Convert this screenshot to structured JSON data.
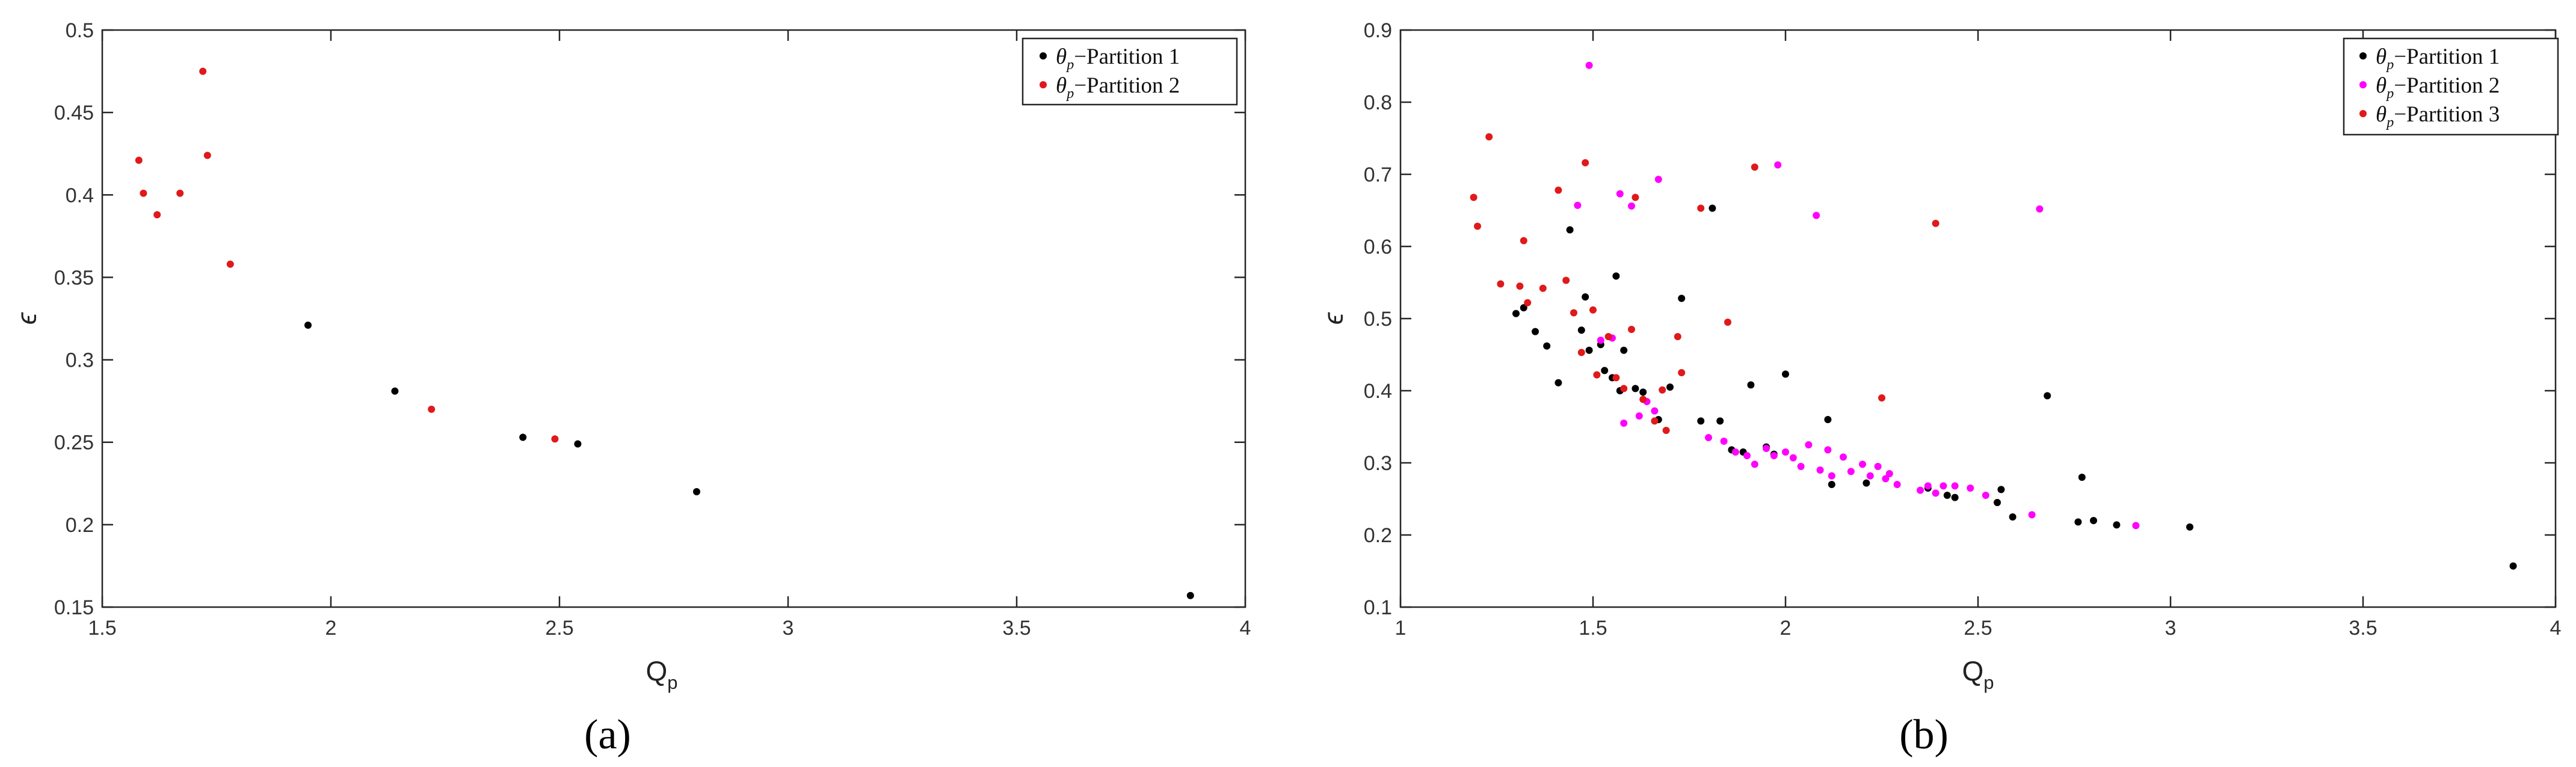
{
  "colors": {
    "partition_1": "#000000",
    "partition_2_a": "#e0191b",
    "partition_2_b": "#ff00ff",
    "partition_3": "#e0191b",
    "axes": "#262626"
  },
  "chart_data": [
    {
      "type": "scatter",
      "caption": "(a)",
      "xlabel_base": "Q",
      "xlabel_sub": "p",
      "ylabel": "ϵ",
      "xlim": [
        1.5,
        4
      ],
      "ylim": [
        0.15,
        0.5
      ],
      "xticks": [
        "1.5",
        "2",
        "2.5",
        "3",
        "3.5",
        "4"
      ],
      "yticks": [
        "0.15",
        "0.2",
        "0.25",
        "0.3",
        "0.35",
        "0.4",
        "0.45",
        "0.5"
      ],
      "legend_position": "top-right",
      "grid": false,
      "series": [
        {
          "legend_theta": "θ",
          "legend_sub": "p",
          "legend_rest": "−Partition 1",
          "color": "#000000",
          "points": [
            [
              1.95,
              0.321
            ],
            [
              2.14,
              0.281
            ],
            [
              2.42,
              0.253
            ],
            [
              2.54,
              0.249
            ],
            [
              2.8,
              0.22
            ],
            [
              3.88,
              0.157
            ]
          ]
        },
        {
          "legend_theta": "θ",
          "legend_sub": "p",
          "legend_rest": "−Partition 2",
          "color": "#e0191b",
          "points": [
            [
              1.58,
              0.421
            ],
            [
              1.59,
              0.401
            ],
            [
              1.62,
              0.388
            ],
            [
              1.67,
              0.401
            ],
            [
              1.72,
              0.475
            ],
            [
              1.73,
              0.424
            ],
            [
              1.78,
              0.358
            ],
            [
              2.22,
              0.27
            ],
            [
              2.49,
              0.252
            ]
          ]
        }
      ]
    },
    {
      "type": "scatter",
      "caption": "(b)",
      "xlabel_base": "Q",
      "xlabel_sub": "p",
      "ylabel": "ϵ",
      "xlim": [
        1,
        4
      ],
      "ylim": [
        0.1,
        0.9
      ],
      "xticks": [
        "1",
        "1.5",
        "2",
        "2.5",
        "3",
        "3.5",
        "4"
      ],
      "yticks": [
        "0.1",
        "0.2",
        "0.3",
        "0.4",
        "0.5",
        "0.6",
        "0.7",
        "0.8",
        "0.9"
      ],
      "legend_position": "top-right",
      "grid": false,
      "series": [
        {
          "legend_theta": "θ",
          "legend_sub": "p",
          "legend_rest": "−Partition 1",
          "color": "#000000",
          "points": [
            [
              1.3,
              0.507
            ],
            [
              1.32,
              0.515
            ],
            [
              1.35,
              0.482
            ],
            [
              1.38,
              0.462
            ],
            [
              1.41,
              0.411
            ],
            [
              1.44,
              0.623
            ],
            [
              1.47,
              0.484
            ],
            [
              1.48,
              0.53
            ],
            [
              1.49,
              0.456
            ],
            [
              1.52,
              0.464
            ],
            [
              1.53,
              0.428
            ],
            [
              1.55,
              0.418
            ],
            [
              1.56,
              0.559
            ],
            [
              1.57,
              0.4
            ],
            [
              1.58,
              0.456
            ],
            [
              1.61,
              0.403
            ],
            [
              1.63,
              0.398
            ],
            [
              1.67,
              0.36
            ],
            [
              1.7,
              0.405
            ],
            [
              1.73,
              0.528
            ],
            [
              1.78,
              0.358
            ],
            [
              1.81,
              0.653
            ],
            [
              1.83,
              0.358
            ],
            [
              1.86,
              0.318
            ],
            [
              1.89,
              0.315
            ],
            [
              1.91,
              0.408
            ],
            [
              1.95,
              0.322
            ],
            [
              1.97,
              0.312
            ],
            [
              2.0,
              0.423
            ],
            [
              2.11,
              0.36
            ],
            [
              2.12,
              0.27
            ],
            [
              2.21,
              0.272
            ],
            [
              2.37,
              0.265
            ],
            [
              2.42,
              0.255
            ],
            [
              2.44,
              0.252
            ],
            [
              2.55,
              0.245
            ],
            [
              2.56,
              0.263
            ],
            [
              2.59,
              0.225
            ],
            [
              2.68,
              0.393
            ],
            [
              2.76,
              0.218
            ],
            [
              2.77,
              0.28
            ],
            [
              2.8,
              0.22
            ],
            [
              2.86,
              0.214
            ],
            [
              3.05,
              0.211
            ],
            [
              3.89,
              0.157
            ]
          ]
        },
        {
          "legend_theta": "θ",
          "legend_sub": "p",
          "legend_rest": "−Partition 2",
          "color": "#ff00ff",
          "points": [
            [
              1.46,
              0.657
            ],
            [
              1.49,
              0.851
            ],
            [
              1.52,
              0.47
            ],
            [
              1.55,
              0.473
            ],
            [
              1.57,
              0.673
            ],
            [
              1.58,
              0.355
            ],
            [
              1.6,
              0.656
            ],
            [
              1.62,
              0.365
            ],
            [
              1.64,
              0.385
            ],
            [
              1.66,
              0.372
            ],
            [
              1.67,
              0.693
            ],
            [
              1.8,
              0.335
            ],
            [
              1.84,
              0.33
            ],
            [
              1.87,
              0.315
            ],
            [
              1.9,
              0.31
            ],
            [
              1.92,
              0.298
            ],
            [
              1.95,
              0.32
            ],
            [
              1.97,
              0.31
            ],
            [
              1.98,
              0.713
            ],
            [
              2.0,
              0.315
            ],
            [
              2.02,
              0.307
            ],
            [
              2.04,
              0.295
            ],
            [
              2.06,
              0.325
            ],
            [
              2.08,
              0.643
            ],
            [
              2.09,
              0.29
            ],
            [
              2.11,
              0.318
            ],
            [
              2.12,
              0.282
            ],
            [
              2.15,
              0.308
            ],
            [
              2.17,
              0.288
            ],
            [
              2.2,
              0.298
            ],
            [
              2.22,
              0.282
            ],
            [
              2.24,
              0.295
            ],
            [
              2.26,
              0.278
            ],
            [
              2.27,
              0.285
            ],
            [
              2.29,
              0.27
            ],
            [
              2.35,
              0.262
            ],
            [
              2.37,
              0.268
            ],
            [
              2.39,
              0.258
            ],
            [
              2.41,
              0.268
            ],
            [
              2.44,
              0.268
            ],
            [
              2.48,
              0.265
            ],
            [
              2.52,
              0.255
            ],
            [
              2.64,
              0.228
            ],
            [
              2.66,
              0.652
            ],
            [
              2.91,
              0.213
            ]
          ]
        },
        {
          "legend_theta": "θ",
          "legend_sub": "p",
          "legend_rest": "−Partition 3",
          "color": "#e0191b",
          "points": [
            [
              1.19,
              0.668
            ],
            [
              1.2,
              0.628
            ],
            [
              1.23,
              0.752
            ],
            [
              1.26,
              0.548
            ],
            [
              1.31,
              0.545
            ],
            [
              1.32,
              0.608
            ],
            [
              1.33,
              0.522
            ],
            [
              1.37,
              0.542
            ],
            [
              1.41,
              0.678
            ],
            [
              1.43,
              0.553
            ],
            [
              1.45,
              0.508
            ],
            [
              1.47,
              0.453
            ],
            [
              1.48,
              0.716
            ],
            [
              1.5,
              0.512
            ],
            [
              1.51,
              0.422
            ],
            [
              1.54,
              0.475
            ],
            [
              1.56,
              0.418
            ],
            [
              1.58,
              0.403
            ],
            [
              1.6,
              0.485
            ],
            [
              1.61,
              0.668
            ],
            [
              1.63,
              0.388
            ],
            [
              1.66,
              0.358
            ],
            [
              1.68,
              0.401
            ],
            [
              1.69,
              0.345
            ],
            [
              1.72,
              0.475
            ],
            [
              1.73,
              0.425
            ],
            [
              1.78,
              0.653
            ],
            [
              1.85,
              0.495
            ],
            [
              1.92,
              0.71
            ],
            [
              2.25,
              0.39
            ],
            [
              2.39,
              0.632
            ]
          ]
        }
      ]
    }
  ]
}
